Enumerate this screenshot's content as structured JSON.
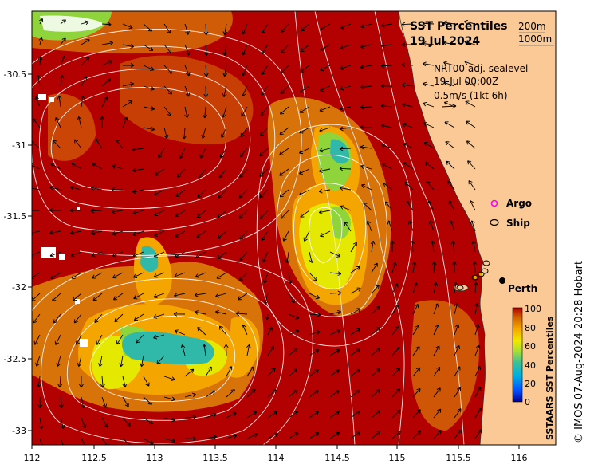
{
  "title": "SST Percentiles",
  "date": "19 Jul 2024",
  "isobaths": [
    "200m",
    "1000m"
  ],
  "sealevel": {
    "product": "NRT00 adj. sealevel",
    "time": "19-Jul 00:00Z",
    "scale": "0.5m/s (1kt 6h)"
  },
  "legend": {
    "argo": "Argo",
    "ship": "Ship",
    "argo_color": "#ff00ff"
  },
  "place": {
    "name": "Perth",
    "lon": 115.86,
    "lat": -31.95
  },
  "colorbar": {
    "label": "SSTAARS SST Percentiles",
    "ticks": [
      "100",
      "80",
      "60",
      "40",
      "20",
      "0"
    ],
    "colors": [
      "#000080",
      "#0044ff",
      "#00a0ff",
      "#3fbfa0",
      "#7fdf3f",
      "#e5f000",
      "#ffd000",
      "#f8a000",
      "#e07000",
      "#b00000"
    ]
  },
  "axes": {
    "x_ticks": [
      "112",
      "112.5",
      "113",
      "113.5",
      "114",
      "114.5",
      "115",
      "115.5",
      "116"
    ],
    "y_ticks": [
      "-30.5",
      "-31",
      "-31.5",
      "-32",
      "-32.5",
      "-33"
    ]
  },
  "credit": "© IMOS 07-Aug-2024 20:28 Hobart",
  "colors": {
    "land": "#fbc995",
    "p95": "#b30000",
    "p80": "#d8730a",
    "p70": "#f5a500",
    "p60": "#e0e000",
    "p50": "#9ad830",
    "p40": "#40c090"
  }
}
